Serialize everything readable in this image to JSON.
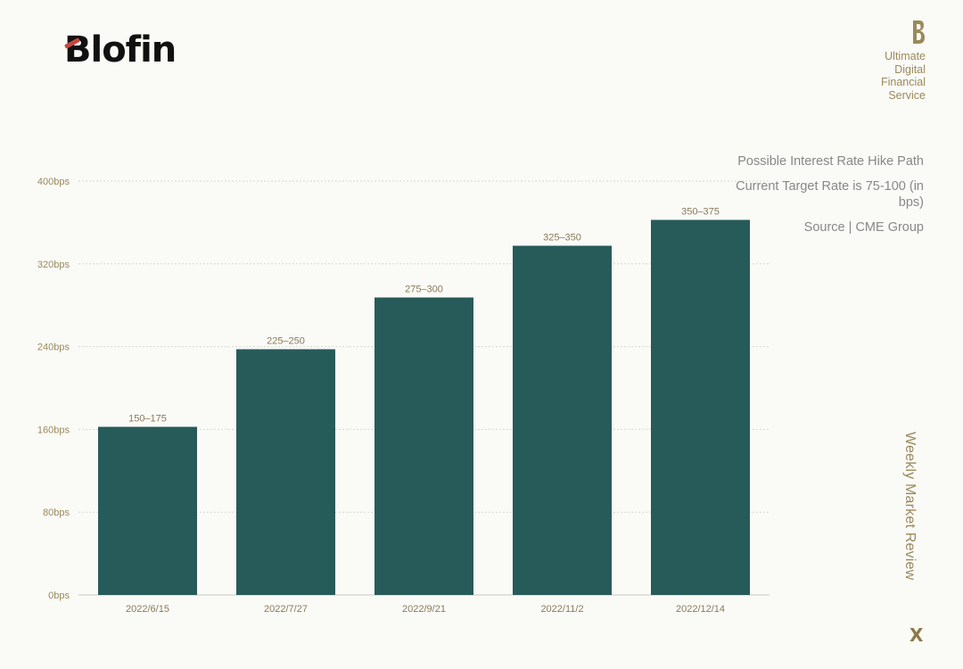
{
  "brand": {
    "logo_text": "Blofin",
    "tagline": [
      "Ultimate",
      "Digital",
      "Financial",
      "Service"
    ],
    "mark_icon": "brand-b-icon"
  },
  "notes": {
    "line1": "Possible Interest Rate Hike Path",
    "line2": "Current Target Rate is 75-100 (in bps)",
    "line3": "Source | CME Group"
  },
  "vertical_title": "Weekly Market Review",
  "close_label": "X",
  "colors": {
    "bar": "#275b5a",
    "accent": "#9a8a5a",
    "grid": "#d8d8d2"
  },
  "chart_data": {
    "type": "bar",
    "categories": [
      "2022/6/15",
      "2022/7/27",
      "2022/9/21",
      "2022/11/2",
      "2022/12/14"
    ],
    "values": [
      162.5,
      237.5,
      287.5,
      337.5,
      362.5
    ],
    "data_labels": [
      "150–175",
      "225–250",
      "275–300",
      "325–350",
      "350–375"
    ],
    "ylim": [
      0,
      400
    ],
    "yticks": [
      0,
      80,
      160,
      240,
      320,
      400
    ],
    "ytick_labels": [
      "0bps",
      "80bps",
      "160bps",
      "240bps",
      "320bps",
      "400bps"
    ],
    "grid": true,
    "title": "",
    "xlabel": "",
    "ylabel": ""
  }
}
